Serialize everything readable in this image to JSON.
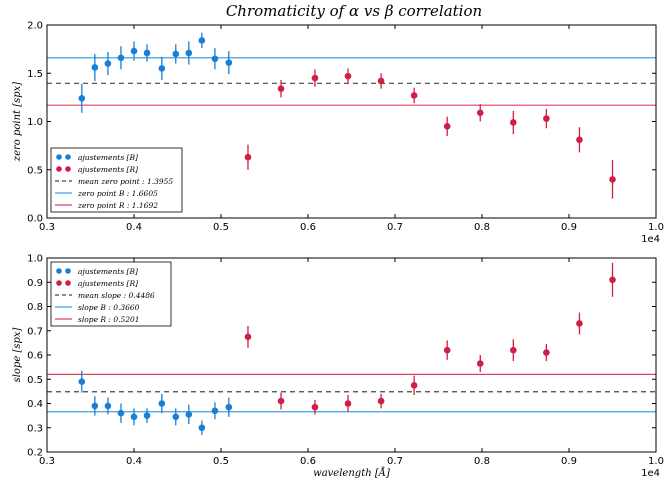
{
  "title": "Chromaticity of α vs β correlation",
  "chart_data": [
    {
      "type": "scatter",
      "panel": "top",
      "ylabel": "zero point [spx]",
      "xlabel": "",
      "x_offset_label": "1e4",
      "xlim": [
        0.3,
        1.0
      ],
      "ylim": [
        0.0,
        2.0
      ],
      "xticks": [
        "0.3",
        "0.4",
        "0.5",
        "0.6",
        "0.7",
        "0.8",
        "0.9",
        "1.0"
      ],
      "yticks": [
        "0.0",
        "0.5",
        "1.0",
        "1.5",
        "2.0"
      ],
      "grid": false,
      "legend_position": "lower-left",
      "series": [
        {
          "name": "ajustements [B]",
          "color": "#1a7fd4",
          "x": [
            0.34,
            0.355,
            0.37,
            0.385,
            0.4,
            0.415,
            0.432,
            0.448,
            0.463,
            0.478,
            0.493,
            0.509
          ],
          "y": [
            1.24,
            1.56,
            1.6,
            1.66,
            1.73,
            1.71,
            1.55,
            1.7,
            1.71,
            1.84,
            1.65,
            1.61
          ],
          "err": [
            0.15,
            0.14,
            0.12,
            0.12,
            0.1,
            0.09,
            0.12,
            0.1,
            0.12,
            0.08,
            0.11,
            0.12
          ]
        },
        {
          "name": "ajustements [R]",
          "color": "#d01e45",
          "x": [
            0.531,
            0.569,
            0.608,
            0.646,
            0.684,
            0.722,
            0.76,
            0.798,
            0.836,
            0.874,
            0.912,
            0.95
          ],
          "y": [
            0.63,
            1.34,
            1.45,
            1.47,
            1.42,
            1.27,
            0.95,
            1.09,
            0.99,
            1.03,
            0.81,
            0.4
          ],
          "err": [
            0.13,
            0.09,
            0.09,
            0.08,
            0.08,
            0.08,
            0.1,
            0.09,
            0.12,
            0.1,
            0.13,
            0.2
          ]
        }
      ],
      "hlines": [
        {
          "name": "mean zero point : 1.3955",
          "value": 1.3955,
          "color": "#444444",
          "style": "dashed"
        },
        {
          "name": "zero point B : 1.6605",
          "value": 1.6605,
          "color": "#3fa2e0",
          "style": "solid"
        },
        {
          "name": "zero point R : 1.1692",
          "value": 1.1692,
          "color": "#e04060",
          "style": "solid"
        }
      ]
    },
    {
      "type": "scatter",
      "panel": "bottom",
      "ylabel": "slope [spx]",
      "xlabel": "wavelength [Å]",
      "x_offset_label": "1e4",
      "xlim": [
        0.3,
        1.0
      ],
      "ylim": [
        0.2,
        1.0
      ],
      "xticks": [
        "0.3",
        "0.4",
        "0.5",
        "0.6",
        "0.7",
        "0.8",
        "0.9",
        "1.0"
      ],
      "yticks": [
        "0.2",
        "0.3",
        "0.4",
        "0.5",
        "0.6",
        "0.7",
        "0.8",
        "0.9",
        "1.0"
      ],
      "grid": false,
      "legend_position": "upper-left",
      "series": [
        {
          "name": "ajustements [B]",
          "color": "#1a7fd4",
          "x": [
            0.34,
            0.355,
            0.37,
            0.385,
            0.4,
            0.415,
            0.432,
            0.448,
            0.463,
            0.478,
            0.493,
            0.509
          ],
          "y": [
            0.49,
            0.39,
            0.39,
            0.36,
            0.345,
            0.35,
            0.4,
            0.345,
            0.355,
            0.3,
            0.37,
            0.385
          ],
          "err": [
            0.045,
            0.04,
            0.035,
            0.04,
            0.035,
            0.03,
            0.04,
            0.035,
            0.04,
            0.03,
            0.035,
            0.04
          ]
        },
        {
          "name": "ajustements [R]",
          "color": "#d01e45",
          "x": [
            0.531,
            0.569,
            0.608,
            0.646,
            0.684,
            0.722,
            0.76,
            0.798,
            0.836,
            0.874,
            0.912,
            0.95
          ],
          "y": [
            0.675,
            0.41,
            0.385,
            0.4,
            0.41,
            0.475,
            0.62,
            0.565,
            0.62,
            0.61,
            0.73,
            0.91
          ],
          "err": [
            0.045,
            0.035,
            0.03,
            0.035,
            0.03,
            0.04,
            0.04,
            0.035,
            0.045,
            0.035,
            0.045,
            0.07
          ]
        }
      ],
      "hlines": [
        {
          "name": "mean slope : 0.4486",
          "value": 0.4486,
          "color": "#444444",
          "style": "dashed"
        },
        {
          "name": "slope B : 0.3660",
          "value": 0.366,
          "color": "#3fa2e0",
          "style": "solid"
        },
        {
          "name": "slope R : 0.5201",
          "value": 0.5201,
          "color": "#e04060",
          "style": "solid"
        }
      ]
    }
  ]
}
